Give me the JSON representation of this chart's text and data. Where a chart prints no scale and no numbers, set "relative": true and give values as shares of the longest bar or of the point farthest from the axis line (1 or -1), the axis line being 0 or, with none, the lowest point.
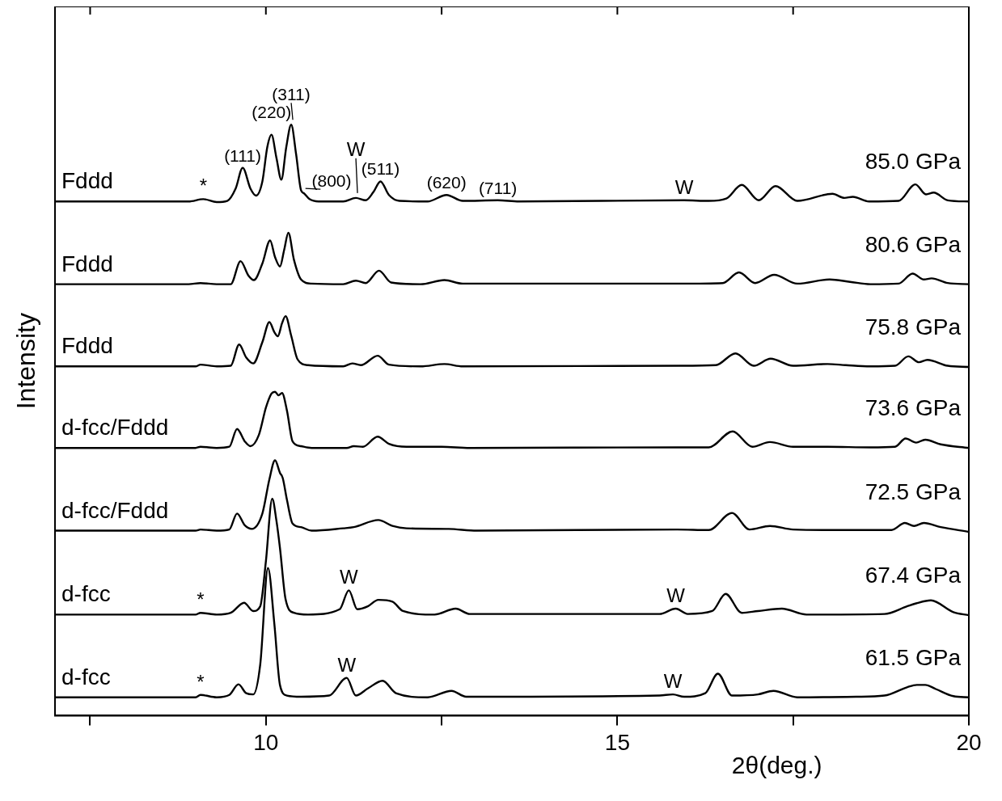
{
  "chart_data": {
    "type": "line",
    "relative": true,
    "xlabel": "2θ(deg.)",
    "ylabel": "Intensity",
    "xlim": [
      7,
      20
    ],
    "xticks": [
      {
        "value": 7.5,
        "label": null
      },
      10,
      {
        "value": 12.5,
        "label": null
      },
      15,
      {
        "value": 17.5,
        "label": null
      },
      20
    ],
    "tick_labels": "x",
    "legend": false,
    "series": [
      {
        "name": "85.0 GPa",
        "color": "#000000",
        "x": [
          7.0,
          8.5,
          8.9,
          9.11,
          9.3,
          9.45,
          9.57,
          9.67,
          9.78,
          9.86,
          9.95,
          10.02,
          10.08,
          10.15,
          10.22,
          10.29,
          10.36,
          10.43,
          10.5,
          10.54,
          10.62,
          10.75,
          11.1,
          11.28,
          11.42,
          11.53,
          11.63,
          11.75,
          11.9,
          12.3,
          12.57,
          12.8,
          13.3,
          13.6,
          15.95,
          16.3,
          16.55,
          16.77,
          17.01,
          17.25,
          17.56,
          18.06,
          18.23,
          18.35,
          18.58,
          19.0,
          19.24,
          19.39,
          19.5,
          19.7,
          20.0
        ],
        "values": [
          0.87,
          0.87,
          0.87,
          0.874,
          0.869,
          0.871,
          0.892,
          0.927,
          0.892,
          0.88,
          0.904,
          0.962,
          0.983,
          0.944,
          0.907,
          0.962,
          1.0,
          0.95,
          0.889,
          0.884,
          0.874,
          0.87,
          0.87,
          0.876,
          0.872,
          0.886,
          0.904,
          0.881,
          0.871,
          0.87,
          0.881,
          0.871,
          0.872,
          0.87,
          0.872,
          0.871,
          0.875,
          0.898,
          0.872,
          0.896,
          0.871,
          0.883,
          0.876,
          0.878,
          0.87,
          0.871,
          0.899,
          0.882,
          0.885,
          0.872,
          0.87
        ]
      },
      {
        "name": "80.6 GPa",
        "color": "#000000",
        "x": [
          7.0,
          8.9,
          9.07,
          9.3,
          9.5,
          9.64,
          9.75,
          9.83,
          9.95,
          10.06,
          10.13,
          10.2,
          10.26,
          10.32,
          10.4,
          10.5,
          10.65,
          11.1,
          11.28,
          11.42,
          11.61,
          11.78,
          12.2,
          12.54,
          12.8,
          15.9,
          16.5,
          16.73,
          16.96,
          17.23,
          17.56,
          18.02,
          18.31,
          18.6,
          19.0,
          19.2,
          19.36,
          19.47,
          19.7,
          20.0
        ],
        "values": [
          0.73,
          0.73,
          0.732,
          0.73,
          0.73,
          0.769,
          0.745,
          0.737,
          0.765,
          0.804,
          0.776,
          0.76,
          0.788,
          0.817,
          0.771,
          0.738,
          0.731,
          0.73,
          0.736,
          0.732,
          0.753,
          0.733,
          0.73,
          0.737,
          0.731,
          0.731,
          0.732,
          0.75,
          0.732,
          0.746,
          0.731,
          0.738,
          0.734,
          0.73,
          0.731,
          0.748,
          0.738,
          0.74,
          0.732,
          0.73
        ]
      },
      {
        "name": "75.8 GPa",
        "color": "#000000",
        "x": [
          7.0,
          9.0,
          9.07,
          9.3,
          9.5,
          9.62,
          9.72,
          9.82,
          9.95,
          10.05,
          10.12,
          10.17,
          10.23,
          10.28,
          10.36,
          10.45,
          10.6,
          11.1,
          11.23,
          11.35,
          11.59,
          11.75,
          12.2,
          12.54,
          12.8,
          15.9,
          16.4,
          16.68,
          16.94,
          17.18,
          17.5,
          17.99,
          18.25,
          18.6,
          18.95,
          19.14,
          19.29,
          19.41,
          19.7,
          20.0
        ],
        "values": [
          0.591,
          0.591,
          0.594,
          0.591,
          0.592,
          0.628,
          0.606,
          0.596,
          0.632,
          0.666,
          0.649,
          0.642,
          0.664,
          0.676,
          0.643,
          0.603,
          0.593,
          0.591,
          0.596,
          0.593,
          0.609,
          0.594,
          0.591,
          0.595,
          0.591,
          0.592,
          0.593,
          0.613,
          0.592,
          0.604,
          0.592,
          0.595,
          0.593,
          0.591,
          0.592,
          0.608,
          0.598,
          0.602,
          0.592,
          0.59
        ]
      },
      {
        "name": "73.6 GPa",
        "color": "#000000",
        "x": [
          7.0,
          9.0,
          9.07,
          9.3,
          9.48,
          9.59,
          9.7,
          9.78,
          9.9,
          10.0,
          10.08,
          10.13,
          10.18,
          10.23,
          10.3,
          10.38,
          10.5,
          10.65,
          11.15,
          11.25,
          11.38,
          11.59,
          11.75,
          12.0,
          12.5,
          12.9,
          15.86,
          16.3,
          16.64,
          16.92,
          17.17,
          17.5,
          17.99,
          18.6,
          18.95,
          19.1,
          19.25,
          19.38,
          19.6,
          20.0
        ],
        "values": [
          0.453,
          0.453,
          0.455,
          0.453,
          0.455,
          0.485,
          0.464,
          0.456,
          0.475,
          0.521,
          0.545,
          0.548,
          0.542,
          0.546,
          0.516,
          0.464,
          0.456,
          0.453,
          0.453,
          0.456,
          0.455,
          0.472,
          0.46,
          0.455,
          0.455,
          0.453,
          0.454,
          0.454,
          0.481,
          0.455,
          0.463,
          0.455,
          0.455,
          0.454,
          0.455,
          0.469,
          0.462,
          0.467,
          0.459,
          0.453
        ]
      },
      {
        "name": "72.5 GPa",
        "color": "#000000",
        "x": [
          7.0,
          9.0,
          9.07,
          9.3,
          9.48,
          9.59,
          9.7,
          9.8,
          9.95,
          10.05,
          10.13,
          10.2,
          10.24,
          10.3,
          10.38,
          10.5,
          10.65,
          11.1,
          11.25,
          11.6,
          11.8,
          12.0,
          12.6,
          13.0,
          15.85,
          16.3,
          16.63,
          16.88,
          17.17,
          17.5,
          18.2,
          18.9,
          19.09,
          19.22,
          19.36,
          19.6,
          20.0
        ],
        "values": [
          0.313,
          0.313,
          0.315,
          0.313,
          0.315,
          0.342,
          0.322,
          0.316,
          0.342,
          0.4,
          0.432,
          0.411,
          0.402,
          0.365,
          0.325,
          0.319,
          0.313,
          0.317,
          0.319,
          0.331,
          0.321,
          0.317,
          0.316,
          0.313,
          0.315,
          0.314,
          0.343,
          0.315,
          0.321,
          0.315,
          0.314,
          0.314,
          0.326,
          0.321,
          0.326,
          0.319,
          0.311
        ]
      },
      {
        "name": "67.4 GPa",
        "color": "#000000",
        "x": [
          7.0,
          9.0,
          9.07,
          9.3,
          9.5,
          9.69,
          9.82,
          9.92,
          10.0,
          10.09,
          10.15,
          10.2,
          10.28,
          10.4,
          10.6,
          11.05,
          11.18,
          11.3,
          11.45,
          11.6,
          11.8,
          11.95,
          12.4,
          12.7,
          12.9,
          15.6,
          15.83,
          16.0,
          16.35,
          16.54,
          16.77,
          17.0,
          17.34,
          17.69,
          18.8,
          19.12,
          19.25,
          19.46,
          19.78,
          20.0
        ],
        "values": [
          0.171,
          0.171,
          0.174,
          0.171,
          0.174,
          0.191,
          0.177,
          0.185,
          0.261,
          0.367,
          0.33,
          0.284,
          0.197,
          0.174,
          0.171,
          0.18,
          0.212,
          0.18,
          0.185,
          0.196,
          0.193,
          0.177,
          0.171,
          0.181,
          0.172,
          0.172,
          0.181,
          0.172,
          0.177,
          0.206,
          0.174,
          0.177,
          0.181,
          0.171,
          0.172,
          0.185,
          0.19,
          0.195,
          0.175,
          0.17
        ]
      },
      {
        "name": "61.5 GPa",
        "color": "#000000",
        "x": [
          7.0,
          9.0,
          9.07,
          9.3,
          9.48,
          9.61,
          9.72,
          9.82,
          9.92,
          10.03,
          10.12,
          10.2,
          10.3,
          10.5,
          10.9,
          11.15,
          11.28,
          11.45,
          11.66,
          11.85,
          12.3,
          12.64,
          12.85,
          15.6,
          15.79,
          15.95,
          16.25,
          16.43,
          16.63,
          17.0,
          17.22,
          17.56,
          18.4,
          18.8,
          19.12,
          19.26,
          19.38,
          19.53,
          19.78,
          20.0
        ],
        "values": [
          0.031,
          0.031,
          0.035,
          0.031,
          0.035,
          0.053,
          0.038,
          0.036,
          0.087,
          0.25,
          0.156,
          0.052,
          0.034,
          0.032,
          0.034,
          0.064,
          0.034,
          0.046,
          0.059,
          0.038,
          0.031,
          0.042,
          0.032,
          0.034,
          0.036,
          0.032,
          0.038,
          0.071,
          0.034,
          0.036,
          0.042,
          0.031,
          0.032,
          0.034,
          0.048,
          0.052,
          0.052,
          0.045,
          0.033,
          0.031
        ]
      }
    ],
    "annotations": [
      "Fddd",
      "Fddd",
      "Fddd",
      "d-fcc/Fddd",
      "d-fcc/Fddd",
      "d-fcc",
      "d-fcc",
      {
        "text": "(111)",
        "x": 9.67,
        "y": 0.927
      },
      {
        "text": "(220)",
        "x": 10.08,
        "y": 0.983
      },
      {
        "text": "(311)",
        "x": 10.36,
        "y": 1.0
      },
      {
        "text": "(800)",
        "x": 10.54,
        "y": 0.884
      },
      {
        "text": "(511)",
        "x": 11.63,
        "y": 0.904
      },
      {
        "text": "(620)",
        "x": 12.57,
        "y": 0.881
      },
      {
        "text": "(711)",
        "x": 13.3,
        "y": 0.872
      },
      {
        "text": "*",
        "x": 9.11,
        "y": 0.874
      },
      {
        "text": "W",
        "x": 11.28,
        "y": 0.876
      },
      {
        "text": "W",
        "x": 15.95,
        "y": 0.872
      },
      {
        "text": "*",
        "x": 9.07,
        "y": 0.174
      },
      {
        "text": "W",
        "x": 11.18,
        "y": 0.212
      },
      {
        "text": "W",
        "x": 15.83,
        "y": 0.181
      },
      {
        "text": "*",
        "x": 9.07,
        "y": 0.035
      },
      {
        "text": "W",
        "x": 11.15,
        "y": 0.064
      },
      {
        "text": "W",
        "x": 15.79,
        "y": 0.036
      }
    ]
  }
}
